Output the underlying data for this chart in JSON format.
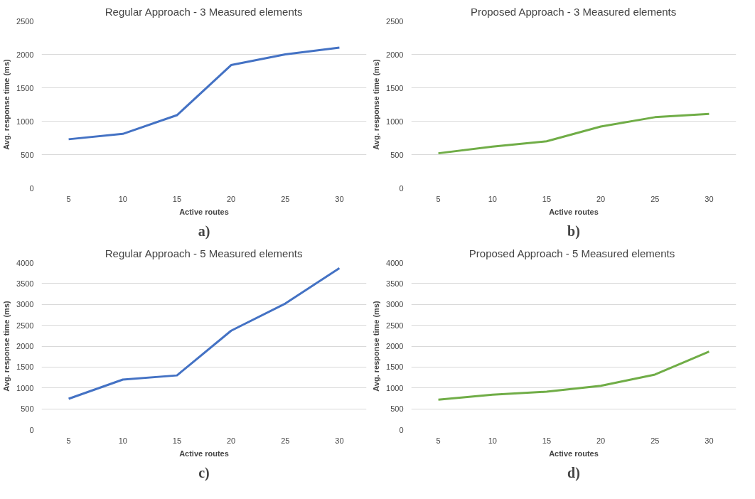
{
  "chart_data": [
    {
      "type": "line",
      "title": "Regular Approach - 3 Measured elements",
      "xlabel": "Active routes",
      "ylabel": "Avg. response time (ms)",
      "categories": [
        "5",
        "10",
        "15",
        "20",
        "25",
        "30"
      ],
      "series": [
        {
          "color": "#4472c4",
          "values": [
            730,
            810,
            1090,
            1840,
            2000,
            2100
          ]
        }
      ],
      "ylim": [
        0,
        2500
      ],
      "yticks": [
        0,
        500,
        1000,
        1500,
        2000,
        2500
      ],
      "grid": "y",
      "annotations": [
        "a)"
      ]
    },
    {
      "type": "line",
      "title": "Proposed Approach - 3 Measured elements",
      "xlabel": "Active routes",
      "ylabel": "Avg. response time (ms)",
      "categories": [
        "5",
        "10",
        "15",
        "20",
        "25",
        "30"
      ],
      "series": [
        {
          "color": "#70ad47",
          "values": [
            520,
            620,
            700,
            920,
            1060,
            1110
          ]
        }
      ],
      "ylim": [
        0,
        2500
      ],
      "yticks": [
        0,
        500,
        1000,
        1500,
        2000,
        2500
      ],
      "grid": "y",
      "annotations": [
        "b)"
      ]
    },
    {
      "type": "line",
      "title": "Regular Approach - 5 Measured elements",
      "xlabel": "Active routes",
      "ylabel": "Avg. response time (ms)",
      "categories": [
        "5",
        "10",
        "15",
        "20",
        "25",
        "30"
      ],
      "series": [
        {
          "color": "#4472c4",
          "values": [
            740,
            1200,
            1300,
            2370,
            3020,
            3870
          ]
        }
      ],
      "ylim": [
        0,
        4000
      ],
      "yticks": [
        0,
        500,
        1000,
        1500,
        2000,
        2500,
        3000,
        3500,
        4000
      ],
      "grid": "y",
      "annotations": [
        "c)"
      ]
    },
    {
      "type": "line",
      "title": "Proposed  Approach - 5 Measured elements",
      "xlabel": "Active routes",
      "ylabel": "Avg. response time (ms)",
      "categories": [
        "5",
        "10",
        "15",
        "20",
        "25",
        "30"
      ],
      "series": [
        {
          "color": "#70ad47",
          "values": [
            720,
            840,
            910,
            1050,
            1320,
            1870
          ]
        }
      ],
      "ylim": [
        0,
        4000
      ],
      "yticks": [
        0,
        500,
        1000,
        1500,
        2000,
        2500,
        3000,
        3500,
        4000
      ],
      "grid": "y",
      "annotations": [
        "d)"
      ]
    }
  ]
}
